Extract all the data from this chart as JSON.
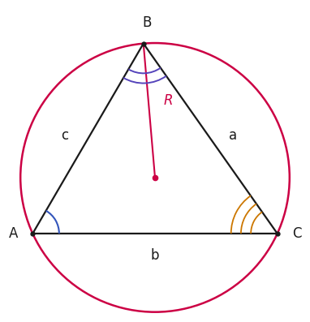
{
  "A": [
    0.13,
    0.355
  ],
  "B": [
    0.465,
    0.93
  ],
  "C": [
    0.87,
    0.355
  ],
  "triangle_color": "#1a1a1a",
  "circle_color": "#cc0044",
  "radius_color": "#cc0044",
  "label_color": "#1a1a1a",
  "angle_A_color": "#3355bb",
  "angle_B_color": "#5544bb",
  "angle_C_color": "#cc7700",
  "label_a": "a",
  "label_b": "b",
  "label_c": "c",
  "label_R": "R",
  "label_A": "A",
  "label_B": "B",
  "label_C": "C",
  "background_color": "#ffffff"
}
